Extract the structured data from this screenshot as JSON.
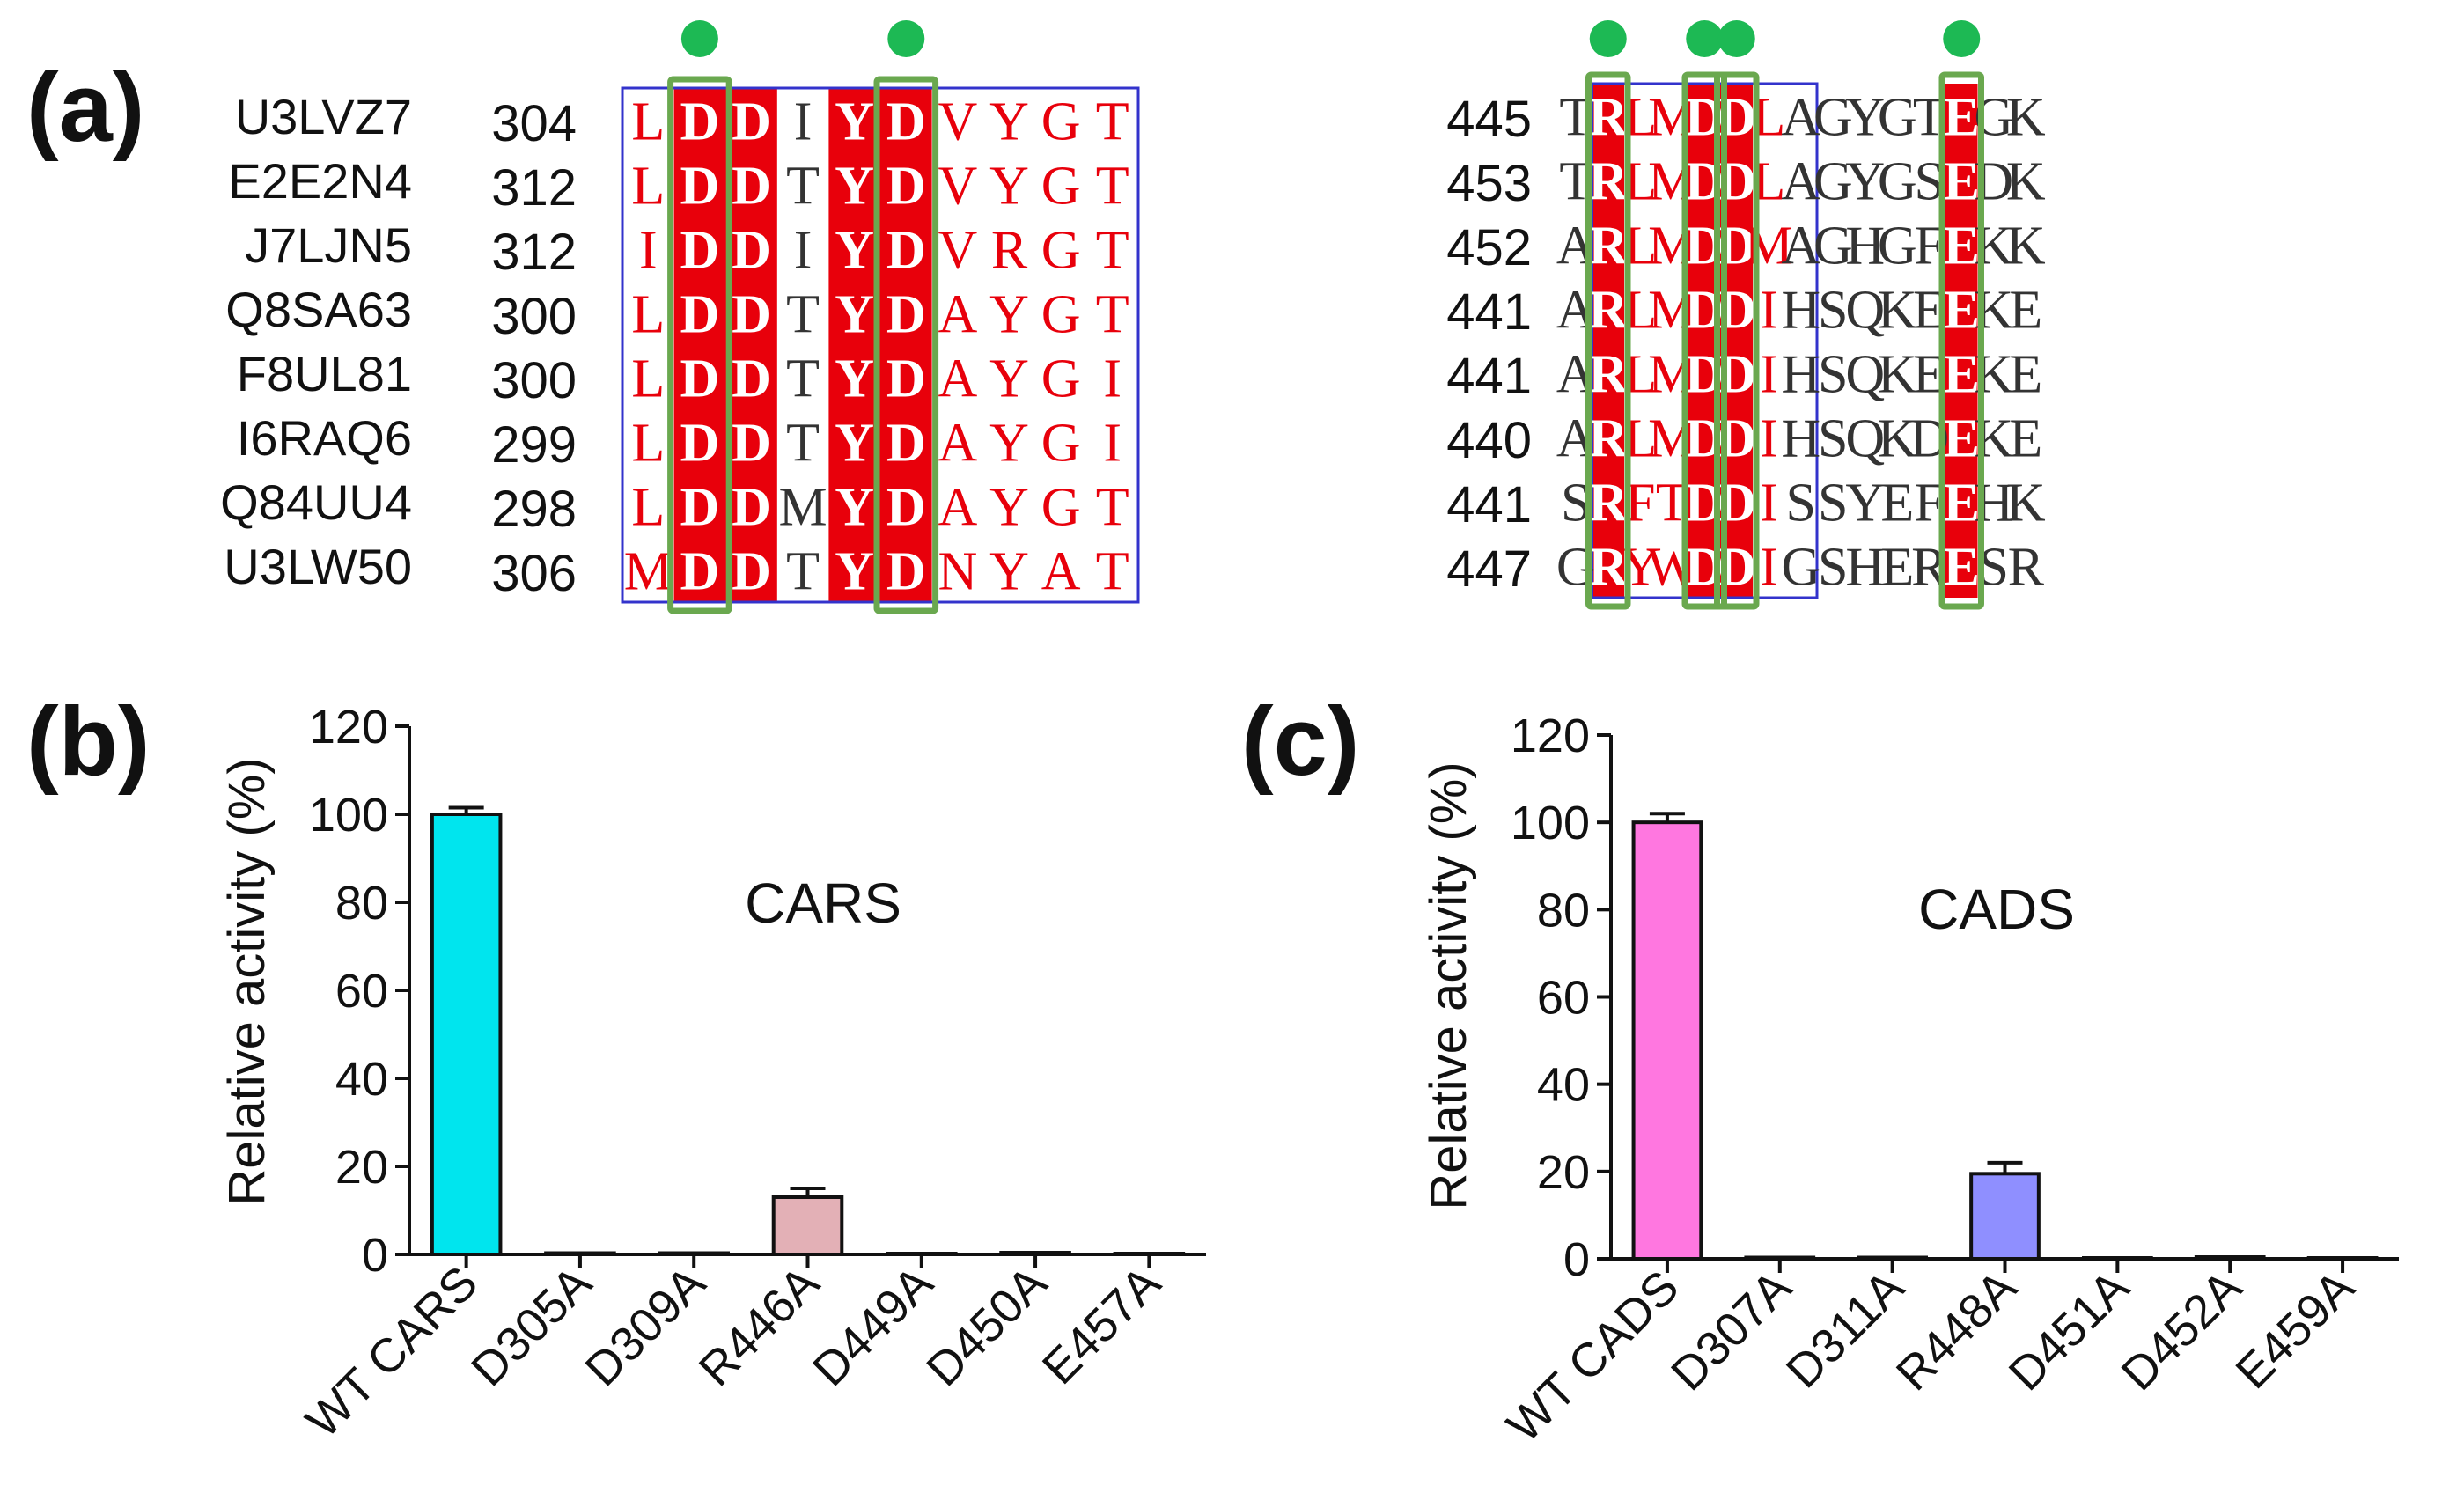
{
  "panels": {
    "a": {
      "label": "(a)"
    },
    "b": {
      "label": "(b)"
    },
    "c": {
      "label": "(c)"
    }
  },
  "alignment": {
    "ids": [
      "U3LVZ7",
      "E2E2N4",
      "J7LJN5",
      "Q8SA63",
      "F8UL81",
      "I6RAQ6",
      "Q84UU4",
      "U3LW50"
    ],
    "left": {
      "starts": [
        "304",
        "312",
        "312",
        "300",
        "300",
        "299",
        "298",
        "306"
      ],
      "rows": [
        "LDDIYDVYGT",
        "LDDTYDVYGT",
        "IDDIYDVRGT",
        "LDDTYDAYGT",
        "LDDTYDAYGI",
        "LDDTYDAYGI",
        "LDDMYDAYGT",
        "MDDTYDNYAT"
      ],
      "red_columns": [
        1,
        2,
        4,
        5
      ],
      "marked_columns": [
        1,
        5
      ]
    },
    "right": {
      "starts": [
        "445",
        "453",
        "452",
        "441",
        "441",
        "440",
        "441",
        "447"
      ],
      "rows": [
        "TRLMDDLAGYGTEGK",
        "TRLMDDLAGYGSEDK",
        "ARLMDDMAGHGFEKK",
        "ARLMDDIHSQKEEKE",
        "ARLMDDIHSQKEEKE",
        "ARLMDDIHSQKDEKE",
        "SRFTDDISSYEFEHK",
        "GRYWDDIGSHERESR"
      ],
      "red_columns": [
        1,
        4,
        5,
        12
      ],
      "marked_columns": [
        1,
        4,
        5,
        12
      ]
    },
    "colors": {
      "conserved_bg": "#e8000b",
      "similar_text": "#e8000b",
      "box": "#6aa84f",
      "marker": "#1db954",
      "frame": "#3333cc"
    }
  },
  "chart_data": [
    {
      "type": "bar",
      "title": "CARS",
      "ylabel": "Relative activity (%)",
      "xlabel": "",
      "categories": [
        "WT CARS",
        "D305A",
        "D309A",
        "R446A",
        "D449A",
        "D450A",
        "E457A"
      ],
      "values": [
        100,
        0.3,
        0.3,
        13,
        0.2,
        0.4,
        0.2
      ],
      "errors": [
        1.5,
        0,
        0,
        2,
        0,
        0,
        0
      ],
      "colors": [
        "#00e5ee",
        "#00e5ee",
        "#00e5ee",
        "#e3b0b6",
        "#e3b0b6",
        "#e3b0b6",
        "#e3b0b6"
      ],
      "ylim": [
        0,
        120
      ],
      "yticks": [
        "0",
        "20",
        "40",
        "60",
        "80",
        "100",
        "120"
      ]
    },
    {
      "type": "bar",
      "title": "CADS",
      "ylabel": "Relative activity (%)",
      "xlabel": "",
      "categories": [
        "WT CADS",
        "D307A",
        "D311A",
        "R448A",
        "D451A",
        "D452A",
        "E459A"
      ],
      "values": [
        100,
        0.3,
        0.3,
        19.5,
        0.2,
        0.4,
        0.2
      ],
      "errors": [
        2,
        0,
        0,
        2.5,
        0,
        0,
        0
      ],
      "colors": [
        "#ff77e0",
        "#ff77e0",
        "#ff77e0",
        "#8f8fff",
        "#8f8fff",
        "#8f8fff",
        "#8f8fff"
      ],
      "ylim": [
        0,
        120
      ],
      "yticks": [
        "0",
        "20",
        "40",
        "60",
        "80",
        "100",
        "120"
      ]
    }
  ]
}
